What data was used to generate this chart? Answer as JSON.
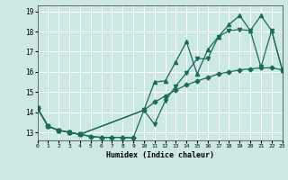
{
  "xlabel": "Humidex (Indice chaleur)",
  "background_color": "#cce8e4",
  "grid_color": "#ffffff",
  "line_color": "#1a6b5a",
  "xlim": [
    0,
    23
  ],
  "ylim": [
    12.6,
    19.3
  ],
  "xticks": [
    0,
    1,
    2,
    3,
    4,
    5,
    6,
    7,
    8,
    9,
    10,
    11,
    12,
    13,
    14,
    15,
    16,
    17,
    18,
    19,
    20,
    21,
    22,
    23
  ],
  "yticks": [
    13,
    14,
    15,
    16,
    17,
    18,
    19
  ],
  "curve_upper_x": [
    0,
    1,
    2,
    3,
    4,
    10,
    11,
    12,
    13,
    14,
    15,
    16,
    17,
    18,
    19,
    20,
    21,
    22,
    23
  ],
  "curve_upper_y": [
    14.2,
    13.3,
    13.1,
    13.0,
    12.9,
    14.1,
    15.5,
    15.55,
    16.5,
    17.5,
    15.9,
    17.1,
    17.75,
    18.35,
    18.8,
    18.05,
    18.8,
    18.05,
    16.1
  ],
  "curve_mid_x": [
    0,
    1,
    2,
    3,
    4,
    10,
    11,
    12,
    13,
    14,
    15,
    16,
    17,
    18,
    19,
    20,
    21,
    22,
    23
  ],
  "curve_mid_y": [
    14.2,
    13.3,
    13.1,
    13.0,
    12.9,
    14.1,
    13.4,
    14.55,
    15.3,
    15.95,
    16.65,
    16.65,
    17.75,
    18.05,
    18.1,
    18.05,
    16.25,
    18.05,
    16.1
  ],
  "curve_diag_x": [
    0,
    1,
    2,
    3,
    4,
    5,
    6,
    7,
    8,
    9,
    10,
    11,
    12,
    13,
    14,
    15,
    16,
    17,
    18,
    19,
    20,
    21,
    22,
    23
  ],
  "curve_diag_y": [
    14.2,
    13.3,
    13.1,
    13.0,
    12.9,
    12.8,
    12.75,
    12.75,
    12.75,
    12.72,
    14.1,
    14.5,
    14.8,
    15.1,
    15.35,
    15.55,
    15.72,
    15.9,
    16.0,
    16.1,
    16.15,
    16.2,
    16.2,
    16.1
  ],
  "curve_low_x": [
    0,
    1,
    2,
    3,
    4,
    5,
    6,
    7,
    8,
    9
  ],
  "curve_low_y": [
    14.2,
    13.3,
    13.1,
    13.0,
    12.9,
    12.8,
    12.75,
    12.75,
    12.75,
    12.72
  ]
}
